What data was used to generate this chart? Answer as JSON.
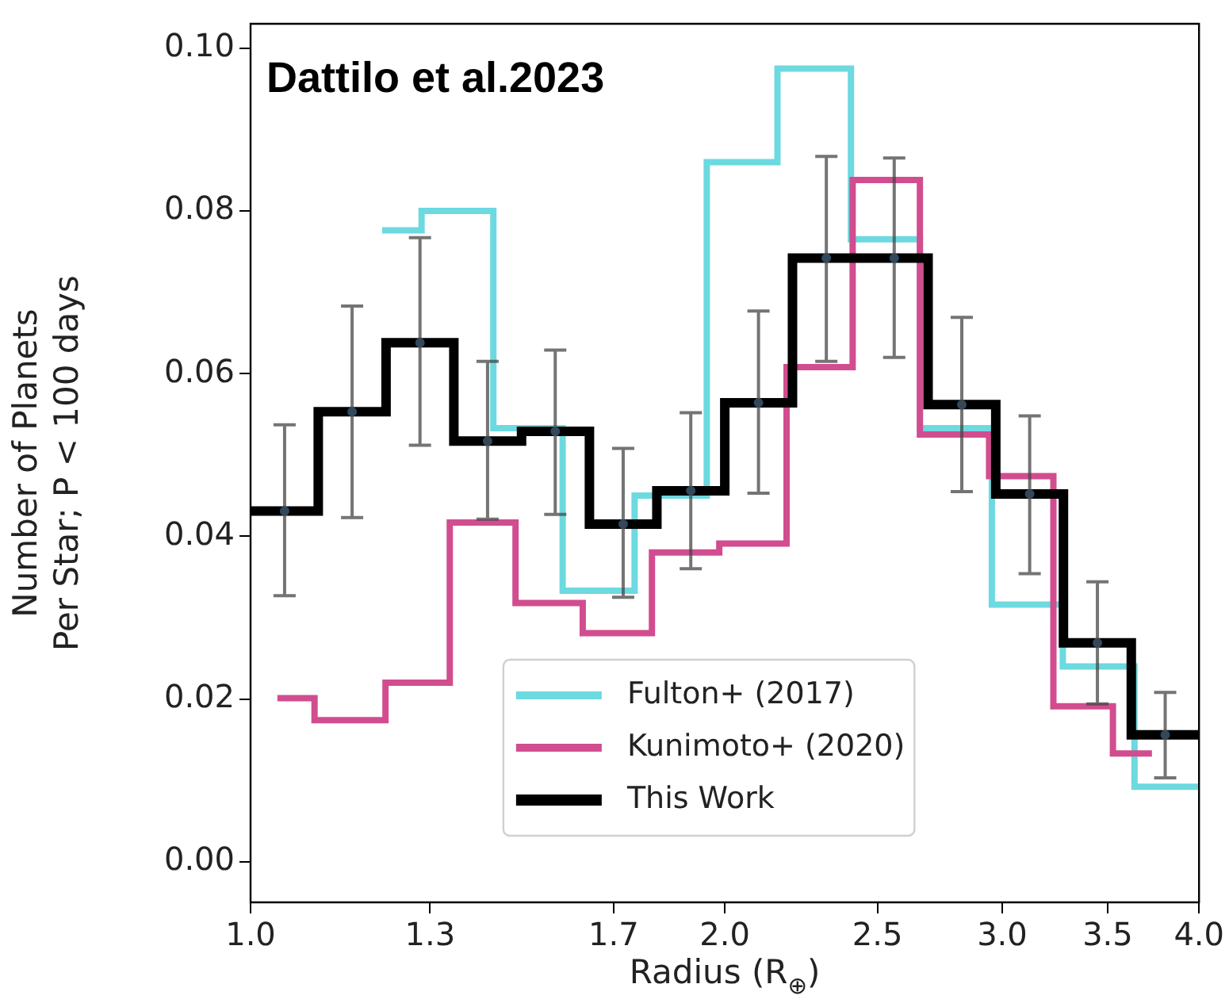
{
  "chart_data": {
    "type": "step",
    "title": "Dattilo et al.2023",
    "xlabel": "Radius (R$_{⊕}$)",
    "ylabel": "Number of Planets\nPer Star; P < 100 days",
    "log": "x",
    "grid": false,
    "legend": "bottom",
    "xlim": [
      1,
      4
    ],
    "xticks": [
      {
        "value": 1,
        "label": "1.0"
      },
      {
        "value": 1.3,
        "label": "1.3"
      },
      {
        "value": 1.7,
        "label": "1.7"
      },
      {
        "value": 2,
        "label": "2.0"
      },
      {
        "value": 2.5,
        "label": "2.5"
      },
      {
        "value": 3,
        "label": "3.0"
      },
      {
        "value": 3.5,
        "label": "3.5"
      },
      {
        "value": 4,
        "label": "4.0"
      }
    ],
    "ylim": [
      -0.005,
      0.103
    ],
    "yticks": [
      {
        "value": 0,
        "label": "0.00"
      },
      {
        "value": 0.02,
        "label": "0.02"
      },
      {
        "value": 0.04,
        "label": "0.04"
      },
      {
        "value": 0.06,
        "label": "0.06"
      },
      {
        "value": 0.08,
        "label": "0.08"
      },
      {
        "value": 0.1,
        "label": "0.10"
      }
    ],
    "series": [
      {
        "name": "Fulton+ (2017)",
        "color": "#6dd9e0",
        "x": [
          1.212,
          1.284,
          1.426,
          1.578,
          1.753,
          1.948,
          2.16,
          2.405,
          2.66,
          2.955,
          3.278,
          3.64,
          4.0
        ],
        "values": [
          0.0776,
          0.08,
          0.0533,
          0.0333,
          0.045,
          0.086,
          0.0975,
          0.0765,
          0.0533,
          0.0316,
          0.024,
          0.0092,
          0.0092
        ]
      },
      {
        "name": "Kunimoto+ (2020)",
        "color": "#d14d8f",
        "x": [
          1.04,
          1.098,
          1.218,
          1.338,
          1.473,
          1.625,
          1.798,
          1.984,
          2.189,
          2.411,
          2.66,
          2.943,
          3.233,
          3.527,
          3.734
        ],
        "values": [
          0.0201,
          0.0174,
          0.022,
          0.0417,
          0.0318,
          0.0281,
          0.038,
          0.0391,
          0.0608,
          0.0838,
          0.0525,
          0.0474,
          0.0191,
          0.0133,
          0.0133
        ]
      },
      {
        "name": "This Work",
        "color": "#000000",
        "x": [
          1.0,
          1.104,
          1.219,
          1.346,
          1.486,
          1.641,
          1.811,
          2.0,
          2.208,
          2.438,
          2.692,
          2.972,
          3.281,
          3.623,
          4.0
        ],
        "values": [
          0.0431,
          0.0553,
          0.0638,
          0.0517,
          0.0529,
          0.0415,
          0.0456,
          0.0564,
          0.0742,
          0.0742,
          0.0562,
          0.0452,
          0.0269,
          0.0156,
          0.0156
        ]
      },
      {
        "type": "scatter",
        "color": "#2a4a66",
        "marker": "circle",
        "x": [
          1.051,
          1.16,
          1.281,
          1.414,
          1.561,
          1.724,
          1.903,
          2.101,
          2.32,
          2.562,
          2.828,
          3.123,
          3.448,
          3.807
        ],
        "values": [
          0.0431,
          0.0553,
          0.0638,
          0.0517,
          0.0529,
          0.0415,
          0.0456,
          0.0564,
          0.0742,
          0.0742,
          0.0562,
          0.0452,
          0.0269,
          0.0156
        ],
        "errors": [
          [
            0.0327,
            0.0537
          ],
          [
            0.0423,
            0.0683
          ],
          [
            0.0512,
            0.0767
          ],
          [
            0.0421,
            0.0615
          ],
          [
            0.0427,
            0.0629
          ],
          [
            0.0325,
            0.0508
          ],
          [
            0.036,
            0.0552
          ],
          [
            0.0453,
            0.0677
          ],
          [
            0.0615,
            0.0867
          ],
          [
            0.062,
            0.0865
          ],
          [
            0.0455,
            0.0669
          ],
          [
            0.0354,
            0.0548
          ],
          [
            0.0194,
            0.0344
          ],
          [
            0.0103,
            0.0208
          ]
        ]
      }
    ]
  }
}
